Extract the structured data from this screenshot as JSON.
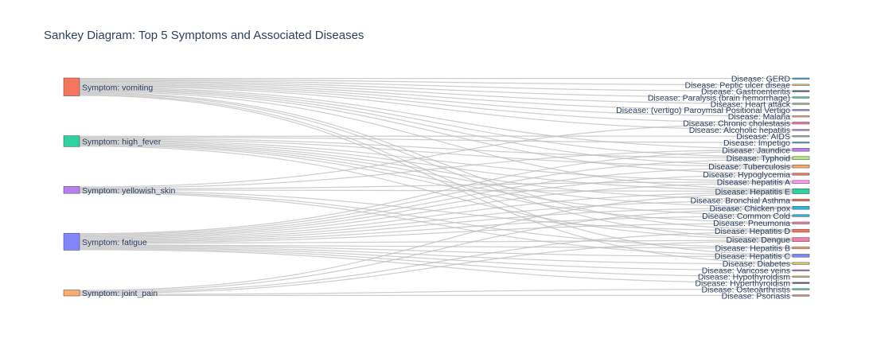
{
  "chart_data": {
    "type": "sankey",
    "title": "Sankey Diagram: Top 5 Symptoms and Associated Diseases",
    "sources": [
      {
        "label": "Symptom:  vomiting",
        "color": "#f4765f"
      },
      {
        "label": "Symptom:  high_fever",
        "color": "#2fd1a0"
      },
      {
        "label": "Symptom:  yellowish_skin",
        "color": "#b97ef2"
      },
      {
        "label": "Symptom:  fatigue",
        "color": "#8187fa"
      },
      {
        "label": "Symptom:  joint_pain",
        "color": "#ffac6b"
      }
    ],
    "targets": [
      {
        "label": "Disease: GERD",
        "color": "#29b6d8"
      },
      {
        "label": "Disease: Peptic ulcer diseae",
        "color": "#e7c95b"
      },
      {
        "label": "Disease: Gastroenteritis",
        "color": "#4c5b8a"
      },
      {
        "label": "Disease: Paralysis (brain hemorrhage)",
        "color": "#2fd1a0"
      },
      {
        "label": "Disease: Heart attack",
        "color": "#9fb38c"
      },
      {
        "label": "Disease: (vertigo) Paroymsal  Positional Vertigo",
        "color": "#8187fa"
      },
      {
        "label": "Disease: Malaria",
        "color": "#ffac6b"
      },
      {
        "label": "Disease: Chronic cholestasis",
        "color": "#f57fae"
      },
      {
        "label": "Disease: Alcoholic hepatitis",
        "color": "#b97ef2"
      },
      {
        "label": "Disease: AIDS",
        "color": "#aab1b8"
      },
      {
        "label": "Disease: Impetigo",
        "color": "#3fbfd0"
      },
      {
        "label": "Disease: Jaundice",
        "color": "#b97ef2"
      },
      {
        "label": "Disease: Typhoid",
        "color": "#b6e880"
      },
      {
        "label": "Disease: Tuberculosis",
        "color": "#ffac6b"
      },
      {
        "label": "Disease: Hypoglycemia",
        "color": "#f4765f"
      },
      {
        "label": "Disease: hepatitis A",
        "color": "#ff97ff"
      },
      {
        "label": "Disease: Hepatitis E",
        "color": "#2fd1a0"
      },
      {
        "label": "Disease: Bronchial Asthma",
        "color": "#f4765f"
      },
      {
        "label": "Disease: Chicken pox",
        "color": "#29b6d8"
      },
      {
        "label": "Disease: Common Cold",
        "color": "#29b6d8"
      },
      {
        "label": "Disease: Pneumonia",
        "color": "#f57fae"
      },
      {
        "label": "Disease: Hepatitis D",
        "color": "#f4765f"
      },
      {
        "label": "Disease: Dengue",
        "color": "#f57fae"
      },
      {
        "label": "Disease: Hepatitis B",
        "color": "#ffac6b"
      },
      {
        "label": "Disease: Hepatitis C",
        "color": "#8187fa"
      },
      {
        "label": "Disease: Diabetes",
        "color": "#e7c95b"
      },
      {
        "label": "Disease: Varicose veins",
        "color": "#b97ef2"
      },
      {
        "label": "Disease: Hypothyroidism",
        "color": "#ffac6b"
      },
      {
        "label": "Disease: Hyperthyroidism",
        "color": "#4c5b8a"
      },
      {
        "label": "Disease: Osteoarthristis",
        "color": "#2fd1a0"
      },
      {
        "label": "Disease: Psoriasis",
        "color": "#f4765f"
      }
    ],
    "links": [
      {
        "source": 0,
        "target": 0,
        "value": 1
      },
      {
        "source": 0,
        "target": 1,
        "value": 1
      },
      {
        "source": 0,
        "target": 2,
        "value": 1
      },
      {
        "source": 0,
        "target": 3,
        "value": 1
      },
      {
        "source": 0,
        "target": 4,
        "value": 1
      },
      {
        "source": 0,
        "target": 5,
        "value": 1
      },
      {
        "source": 0,
        "target": 6,
        "value": 1
      },
      {
        "source": 0,
        "target": 7,
        "value": 1
      },
      {
        "source": 0,
        "target": 8,
        "value": 1
      },
      {
        "source": 0,
        "target": 11,
        "value": 1
      },
      {
        "source": 0,
        "target": 12,
        "value": 1
      },
      {
        "source": 0,
        "target": 13,
        "value": 1
      },
      {
        "source": 0,
        "target": 14,
        "value": 1
      },
      {
        "source": 0,
        "target": 16,
        "value": 1
      },
      {
        "source": 0,
        "target": 21,
        "value": 1
      },
      {
        "source": 0,
        "target": 22,
        "value": 1
      },
      {
        "source": 0,
        "target": 24,
        "value": 1
      },
      {
        "source": 0,
        "target": 25,
        "value": 1
      },
      {
        "source": 1,
        "target": 9,
        "value": 1
      },
      {
        "source": 1,
        "target": 10,
        "value": 1
      },
      {
        "source": 1,
        "target": 12,
        "value": 1
      },
      {
        "source": 1,
        "target": 13,
        "value": 1
      },
      {
        "source": 1,
        "target": 15,
        "value": 1
      },
      {
        "source": 1,
        "target": 16,
        "value": 1
      },
      {
        "source": 1,
        "target": 17,
        "value": 1
      },
      {
        "source": 1,
        "target": 18,
        "value": 1
      },
      {
        "source": 1,
        "target": 19,
        "value": 1
      },
      {
        "source": 1,
        "target": 20,
        "value": 1
      },
      {
        "source": 1,
        "target": 22,
        "value": 1
      },
      {
        "source": 2,
        "target": 7,
        "value": 1
      },
      {
        "source": 2,
        "target": 11,
        "value": 1
      },
      {
        "source": 2,
        "target": 15,
        "value": 1
      },
      {
        "source": 2,
        "target": 16,
        "value": 1
      },
      {
        "source": 2,
        "target": 21,
        "value": 1
      },
      {
        "source": 2,
        "target": 23,
        "value": 1
      },
      {
        "source": 2,
        "target": 24,
        "value": 1
      },
      {
        "source": 3,
        "target": 11,
        "value": 1
      },
      {
        "source": 3,
        "target": 12,
        "value": 1
      },
      {
        "source": 3,
        "target": 13,
        "value": 1
      },
      {
        "source": 3,
        "target": 14,
        "value": 1
      },
      {
        "source": 3,
        "target": 15,
        "value": 1
      },
      {
        "source": 3,
        "target": 16,
        "value": 1
      },
      {
        "source": 3,
        "target": 17,
        "value": 1
      },
      {
        "source": 3,
        "target": 18,
        "value": 1
      },
      {
        "source": 3,
        "target": 19,
        "value": 1
      },
      {
        "source": 3,
        "target": 20,
        "value": 1
      },
      {
        "source": 3,
        "target": 22,
        "value": 1
      },
      {
        "source": 3,
        "target": 23,
        "value": 1
      },
      {
        "source": 3,
        "target": 24,
        "value": 1
      },
      {
        "source": 3,
        "target": 26,
        "value": 1
      },
      {
        "source": 3,
        "target": 27,
        "value": 1
      },
      {
        "source": 3,
        "target": 28,
        "value": 1
      },
      {
        "source": 3,
        "target": 25,
        "value": 1
      },
      {
        "source": 4,
        "target": 18,
        "value": 1
      },
      {
        "source": 4,
        "target": 22,
        "value": 1
      },
      {
        "source": 4,
        "target": 29,
        "value": 1
      },
      {
        "source": 4,
        "target": 30,
        "value": 1
      },
      {
        "source": 4,
        "target": 16,
        "value": 1
      },
      {
        "source": 4,
        "target": 21,
        "value": 1
      }
    ]
  }
}
